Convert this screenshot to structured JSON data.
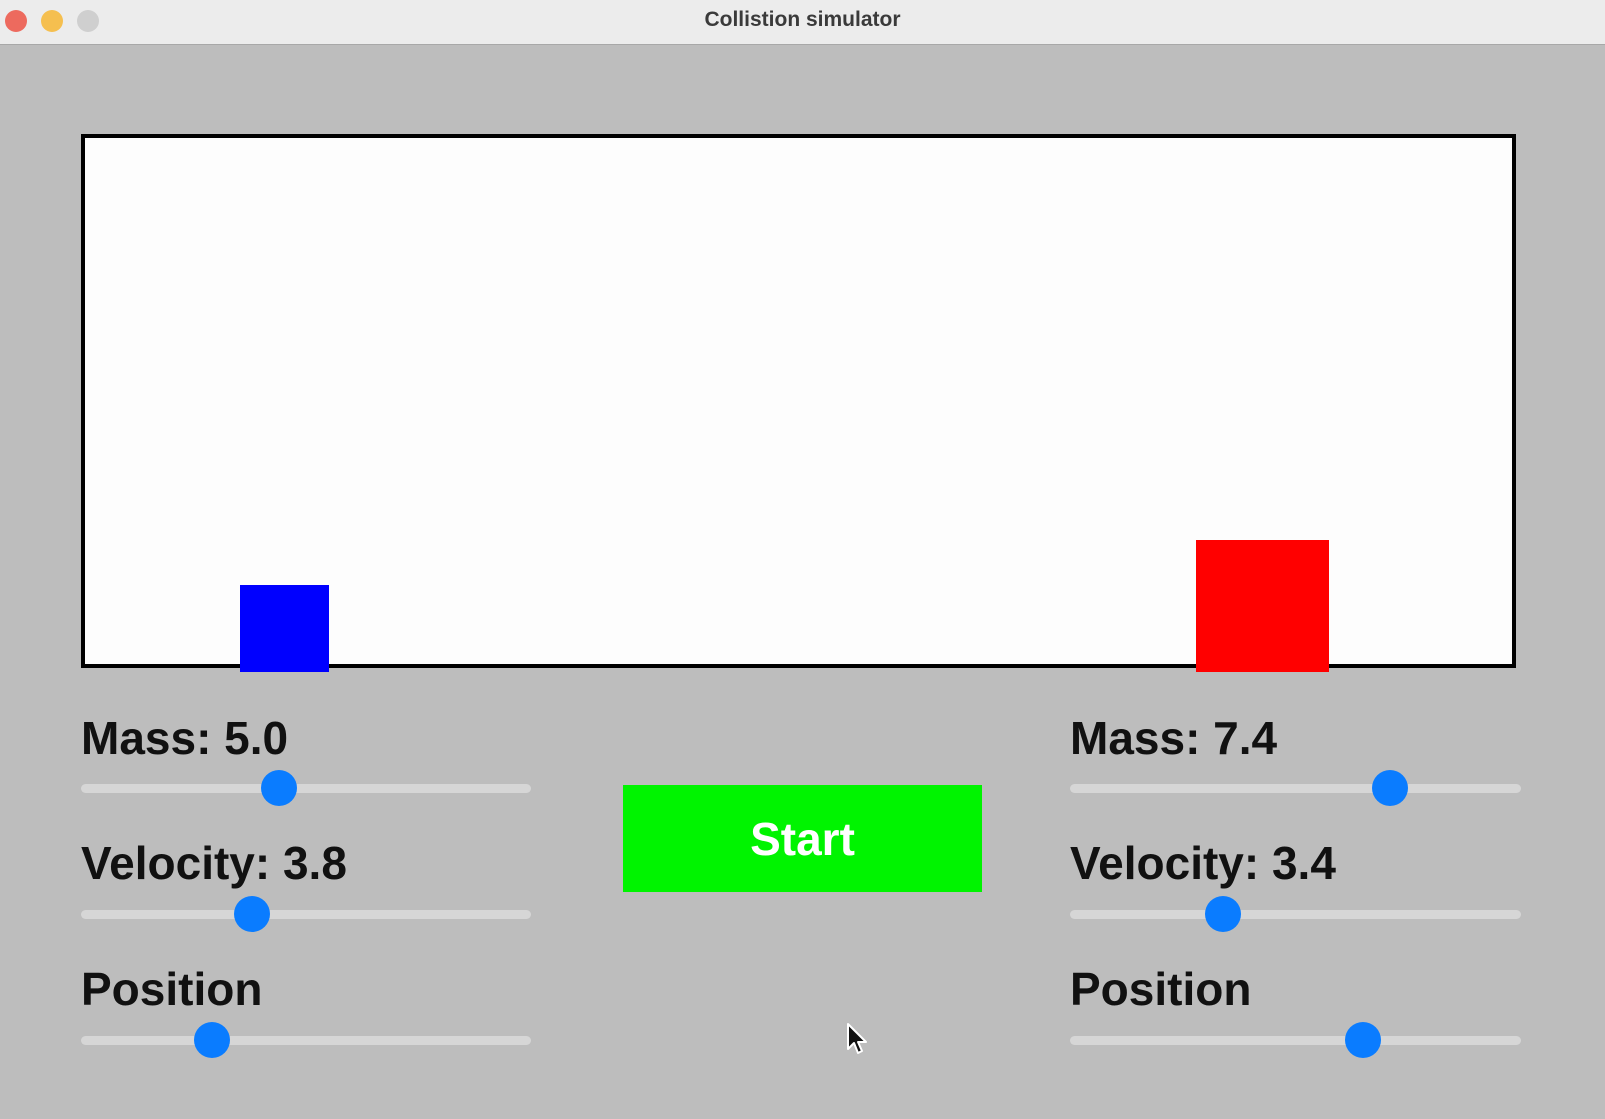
{
  "window": {
    "title": "Collistion simulator"
  },
  "arena": {
    "left_block": {
      "color": "#0000ff"
    },
    "right_block": {
      "color": "#ff0000"
    }
  },
  "left_controls": {
    "mass_label": "Mass: 5.0",
    "mass_level": 0.44,
    "velocity_label": "Velocity: 3.8",
    "velocity_level": 0.38,
    "position_label": "Position",
    "position_level": 0.29
  },
  "right_controls": {
    "mass_label": "Mass: 7.4",
    "mass_level": 0.71,
    "velocity_label": "Velocity: 3.4",
    "velocity_level": 0.34,
    "position_label": "Position",
    "position_level": 0.65
  },
  "start_button": {
    "label": "Start",
    "color": "#00f400"
  },
  "icons": {
    "close": "close-icon",
    "minimize": "minimize-icon",
    "maximize": "maximize-icon",
    "cursor": "mouse-pointer-icon"
  }
}
